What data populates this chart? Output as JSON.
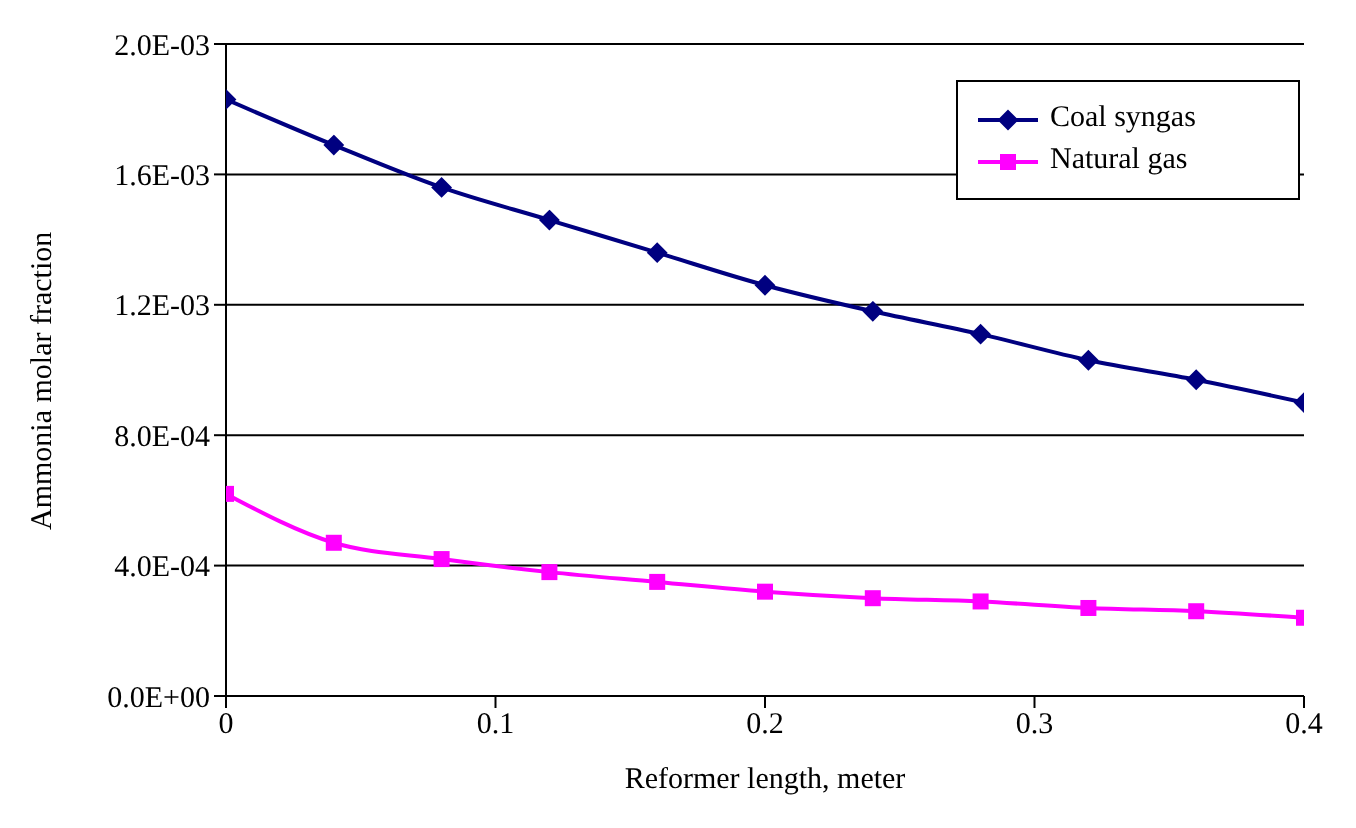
{
  "chart_data": {
    "type": "line",
    "xlabel": "Reformer length, meter",
    "ylabel": "Ammonia molar fraction",
    "x": [
      0,
      0.04,
      0.08,
      0.12,
      0.16,
      0.2,
      0.24,
      0.28,
      0.32,
      0.36,
      0.4
    ],
    "series": [
      {
        "name": "Coal syngas",
        "color": "#000080",
        "marker": "diamond",
        "values": [
          0.00183,
          0.00169,
          0.00156,
          0.00146,
          0.00136,
          0.00126,
          0.00118,
          0.00111,
          0.00103,
          0.00097,
          0.0009
        ]
      },
      {
        "name": "Natural gas",
        "color": "#ff00ff",
        "marker": "square",
        "values": [
          0.00062,
          0.00047,
          0.00042,
          0.00038,
          0.00035,
          0.00032,
          0.0003,
          0.00029,
          0.00027,
          0.00026,
          0.00024
        ]
      }
    ],
    "xlim": [
      0,
      0.4
    ],
    "xticks": [
      0,
      0.1,
      0.2,
      0.3,
      0.4
    ],
    "ylim": [
      0,
      0.002
    ],
    "yticks": [
      {
        "value": 0,
        "label": "0.0E+00"
      },
      {
        "value": 0.0004,
        "label": "4.0E-04"
      },
      {
        "value": 0.0008,
        "label": "8.0E-04"
      },
      {
        "value": 0.0012,
        "label": "1.2E-03"
      },
      {
        "value": 0.0016,
        "label": "1.6E-03"
      },
      {
        "value": 0.002,
        "label": "2.0E-03"
      }
    ],
    "grid": "y",
    "legend": "top right",
    "line_style": "solid"
  }
}
